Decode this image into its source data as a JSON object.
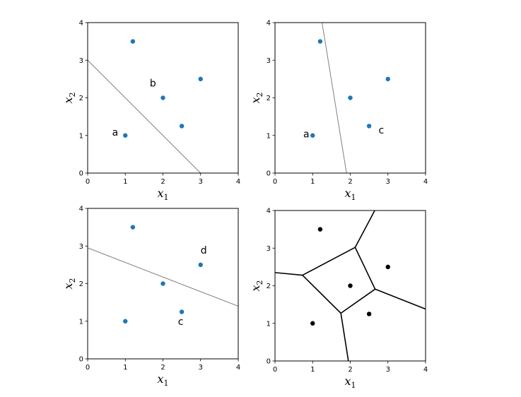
{
  "chart_data": [
    {
      "type": "scatter",
      "panel": "top-left",
      "xlim": [
        0,
        4
      ],
      "ylim": [
        0,
        4
      ],
      "xticks": [
        "0",
        "1",
        "2",
        "3",
        "4"
      ],
      "yticks": [
        "0",
        "1",
        "2",
        "3",
        "4"
      ],
      "xlabel": "x",
      "xlabel_sub": "1",
      "ylabel": "x",
      "ylabel_sub": "2",
      "point_color": "#1f77b4",
      "line_color": "#808080",
      "points": [
        {
          "x": 1.0,
          "y": 1.0
        },
        {
          "x": 1.2,
          "y": 3.5
        },
        {
          "x": 2.0,
          "y": 2.0
        },
        {
          "x": 2.5,
          "y": 1.25
        },
        {
          "x": 3.0,
          "y": 2.5
        }
      ],
      "lines": [
        {
          "x1": 0,
          "y1": 3.0,
          "x2": 3.0,
          "y2": 0
        }
      ],
      "annotations": [
        {
          "text": "a",
          "x": 0.65,
          "y": 1.0
        },
        {
          "text": "b",
          "x": 1.65,
          "y": 2.3
        }
      ]
    },
    {
      "type": "scatter",
      "panel": "top-right",
      "xlim": [
        0,
        4
      ],
      "ylim": [
        0,
        4
      ],
      "xticks": [
        "0",
        "1",
        "2",
        "3",
        "4"
      ],
      "yticks": [
        "0",
        "1",
        "2",
        "3",
        "4"
      ],
      "xlabel": "x",
      "xlabel_sub": "1",
      "ylabel": "x",
      "ylabel_sub": "2",
      "point_color": "#1f77b4",
      "line_color": "#808080",
      "points": [
        {
          "x": 1.0,
          "y": 1.0
        },
        {
          "x": 1.2,
          "y": 3.5
        },
        {
          "x": 2.0,
          "y": 2.0
        },
        {
          "x": 2.5,
          "y": 1.25
        },
        {
          "x": 3.0,
          "y": 2.5
        }
      ],
      "lines": [
        {
          "x1": 1.25,
          "y1": 4.0,
          "x2": 1.9,
          "y2": 0
        }
      ],
      "annotations": [
        {
          "text": "a",
          "x": 0.75,
          "y": 0.95
        },
        {
          "text": "c",
          "x": 2.75,
          "y": 1.05
        }
      ]
    },
    {
      "type": "scatter",
      "panel": "bottom-left",
      "xlim": [
        0,
        4
      ],
      "ylim": [
        0,
        4
      ],
      "xticks": [
        "0",
        "1",
        "2",
        "3",
        "4"
      ],
      "yticks": [
        "0",
        "1",
        "2",
        "3",
        "4"
      ],
      "xlabel": "x",
      "xlabel_sub": "1",
      "ylabel": "x",
      "ylabel_sub": "2",
      "point_color": "#1f77b4",
      "line_color": "#808080",
      "points": [
        {
          "x": 1.0,
          "y": 1.0
        },
        {
          "x": 1.2,
          "y": 3.5
        },
        {
          "x": 2.0,
          "y": 2.0
        },
        {
          "x": 2.5,
          "y": 1.25
        },
        {
          "x": 3.0,
          "y": 2.5
        }
      ],
      "lines": [
        {
          "x1": 0,
          "y1": 2.95,
          "x2": 4.0,
          "y2": 1.4
        }
      ],
      "annotations": [
        {
          "text": "d",
          "x": 3.0,
          "y": 2.8
        },
        {
          "text": "c",
          "x": 2.4,
          "y": 0.9
        }
      ]
    },
    {
      "type": "scatter",
      "panel": "bottom-right",
      "xlim": [
        0,
        4
      ],
      "ylim": [
        0,
        4
      ],
      "xticks": [
        "0",
        "1",
        "2",
        "3",
        "4"
      ],
      "yticks": [
        "0",
        "1",
        "2",
        "3",
        "4"
      ],
      "xlabel": "x",
      "xlabel_sub": "1",
      "ylabel": "x",
      "ylabel_sub": "2",
      "point_color": "#000000",
      "line_color": "#000000",
      "points": [
        {
          "x": 1.0,
          "y": 1.0
        },
        {
          "x": 1.2,
          "y": 3.5
        },
        {
          "x": 2.0,
          "y": 2.0
        },
        {
          "x": 2.5,
          "y": 1.25
        },
        {
          "x": 3.0,
          "y": 2.5
        }
      ],
      "lines": [
        {
          "x1": 0.0,
          "y1": 2.35,
          "x2": 0.73,
          "y2": 2.28
        },
        {
          "x1": 0.73,
          "y1": 2.28,
          "x2": 2.13,
          "y2": 3.02
        },
        {
          "x1": 2.13,
          "y1": 3.02,
          "x2": 2.66,
          "y2": 1.91
        },
        {
          "x1": 2.66,
          "y1": 1.91,
          "x2": 1.75,
          "y2": 1.27
        },
        {
          "x1": 1.75,
          "y1": 1.27,
          "x2": 0.73,
          "y2": 2.28
        },
        {
          "x1": 2.13,
          "y1": 3.02,
          "x2": 2.65,
          "y2": 4.0
        },
        {
          "x1": 2.66,
          "y1": 1.91,
          "x2": 4.0,
          "y2": 1.38
        },
        {
          "x1": 1.75,
          "y1": 1.27,
          "x2": 1.95,
          "y2": 0
        }
      ],
      "annotations": []
    }
  ]
}
